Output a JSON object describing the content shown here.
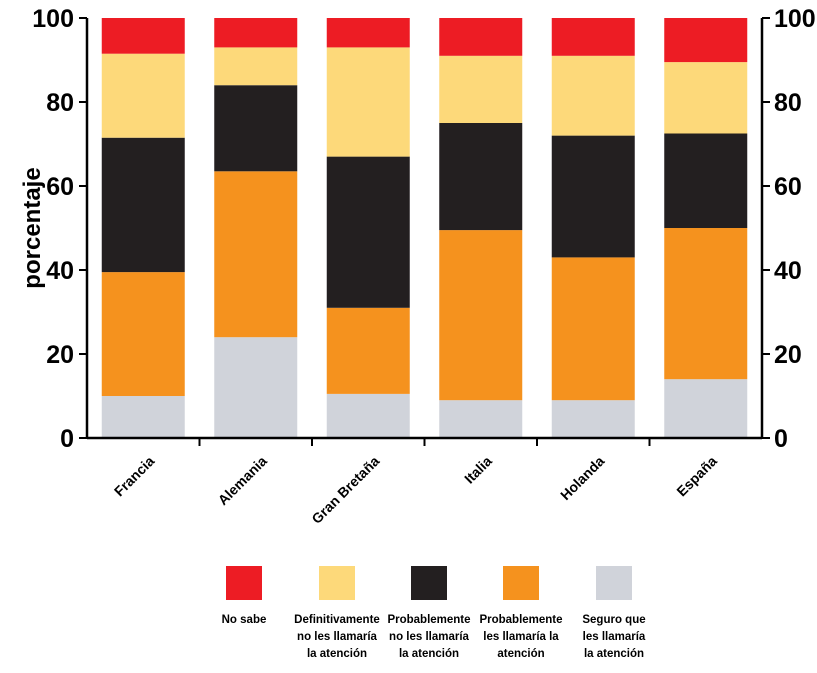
{
  "chart_data": {
    "type": "bar",
    "stacked": true,
    "ylabel": "porcentaje",
    "xlabel": "",
    "title": "",
    "ylim": [
      0,
      100
    ],
    "yticks": [
      "0",
      "20",
      "40",
      "60",
      "80",
      "100"
    ],
    "right_axis": true,
    "grid": false,
    "legend_position": "bottom",
    "categories": [
      "Francia",
      "Alemania",
      "Gran Bretaña",
      "Italia",
      "Holanda",
      "España"
    ],
    "series": [
      {
        "name": "Seguro que les llamaría la atención",
        "color": "#d0d3da",
        "values": [
          10,
          24,
          10.5,
          9,
          9,
          14
        ]
      },
      {
        "name": "Probablemente les llamaría la atención",
        "color": "#f5921e",
        "values": [
          29.5,
          39.5,
          20.5,
          40.5,
          34,
          36
        ]
      },
      {
        "name": "Probablemente no les llamaría la atención",
        "color": "#231f20",
        "values": [
          32,
          20.5,
          36,
          25.5,
          29,
          22.5
        ]
      },
      {
        "name": "Definitivamente no les llamaría la atención",
        "color": "#fdd97a",
        "values": [
          20,
          9,
          26,
          16,
          19,
          17
        ]
      },
      {
        "name": "No sabe",
        "color": "#ed1c24",
        "values": [
          8.5,
          7,
          7,
          9,
          9,
          10.5
        ]
      }
    ],
    "legend": [
      {
        "lines": [
          "No sabe"
        ],
        "color": "#ed1c24"
      },
      {
        "lines": [
          "Definitivamente",
          "no les llamaría",
          "la atención"
        ],
        "color": "#fdd97a"
      },
      {
        "lines": [
          "Probablemente",
          "no les llamaría",
          "la atención"
        ],
        "color": "#231f20"
      },
      {
        "lines": [
          "Probablemente",
          "les llamaría la",
          "atención"
        ],
        "color": "#f5921e"
      },
      {
        "lines": [
          "Seguro que",
          "les llamaría",
          "la atención"
        ],
        "color": "#d0d3da"
      }
    ]
  }
}
